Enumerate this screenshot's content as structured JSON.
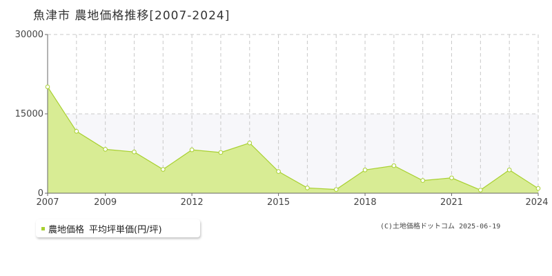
{
  "title": "魚津市 農地価格推移[2007-2024]",
  "legend": {
    "series_label": "農地価格",
    "unit_label": "平均坪単価(円/坪)",
    "color": "#a8d030"
  },
  "copyright": "(C)土地価格ドットコム 2025-06-19",
  "chart_data": {
    "type": "area",
    "x": [
      2007,
      2008,
      2009,
      2010,
      2011,
      2012,
      2013,
      2014,
      2015,
      2016,
      2017,
      2018,
      2019,
      2020,
      2021,
      2022,
      2023,
      2024
    ],
    "values": [
      20100,
      11700,
      8300,
      7800,
      4500,
      8200,
      7700,
      9500,
      4100,
      1000,
      700,
      4400,
      5200,
      2400,
      2900,
      600,
      4400,
      900
    ],
    "xlim": [
      2007,
      2024
    ],
    "ylim": [
      0,
      30000
    ],
    "yticks": [
      "0",
      "15000",
      "30000"
    ],
    "xticks": [
      "2007",
      "2009",
      "2012",
      "2015",
      "2018",
      "2021",
      "2024"
    ],
    "fill_color": "#d8ec94",
    "line_color": "#a8d030",
    "grid": true
  }
}
